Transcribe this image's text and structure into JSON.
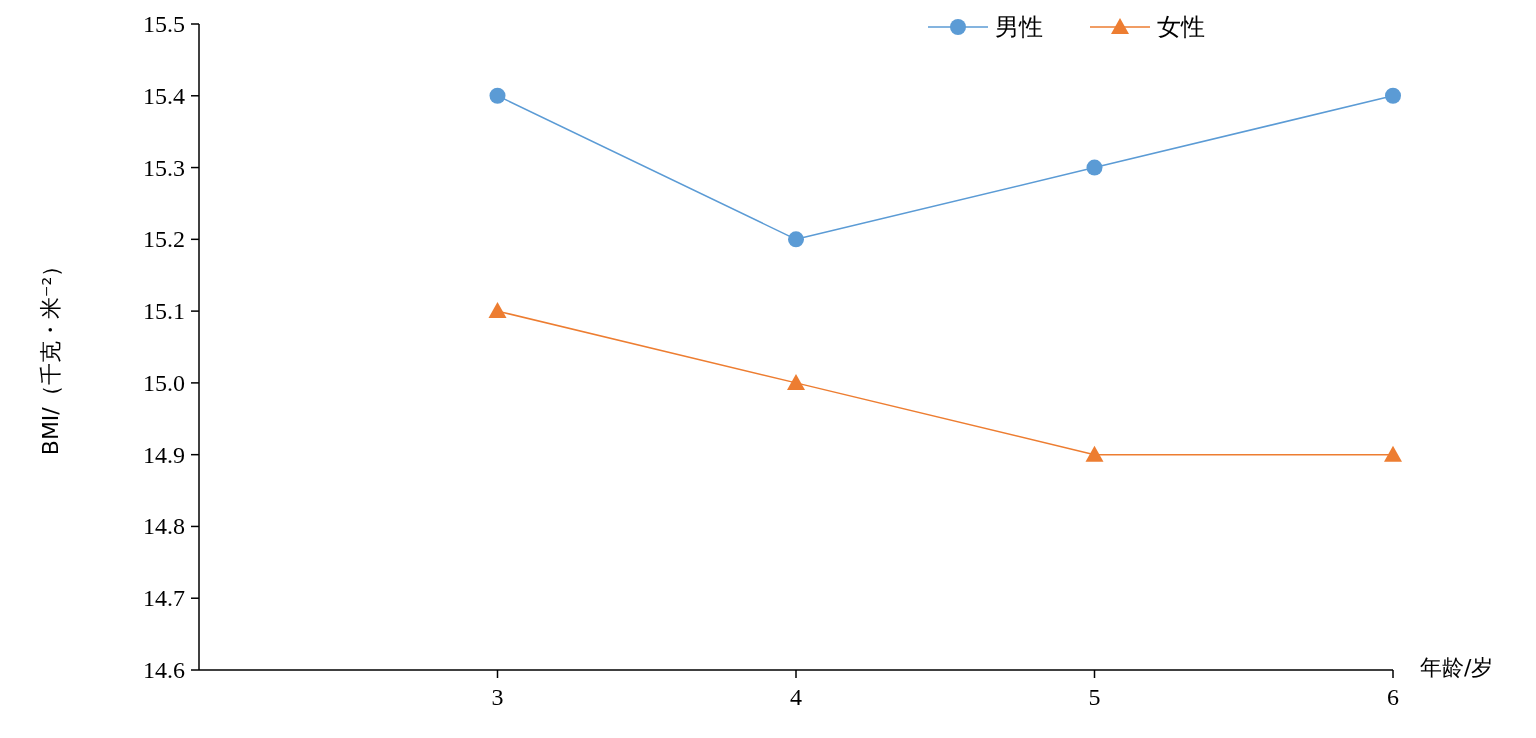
{
  "chart_data": {
    "type": "line",
    "xlabel": "年龄/岁",
    "ylabel": "BMI/（千克・米⁻²）",
    "x": [
      3,
      4,
      5,
      6
    ],
    "xlim": [
      2,
      6
    ],
    "xticks": [
      3,
      4,
      5,
      6
    ],
    "ylim": [
      14.6,
      15.5
    ],
    "yticks": [
      {
        "value": 14.6,
        "label": "14.6"
      },
      {
        "value": 14.7,
        "label": "14.7"
      },
      {
        "value": 14.8,
        "label": "14.8"
      },
      {
        "value": 14.9,
        "label": "14.9"
      },
      {
        "value": 15,
        "label": "15.0"
      },
      {
        "value": 15.1,
        "label": "15.1"
      },
      {
        "value": 15.2,
        "label": "15.2"
      },
      {
        "value": 15.3,
        "label": "15.3"
      },
      {
        "value": 15.4,
        "label": "15.4"
      },
      {
        "value": 15.5,
        "label": "15.5"
      }
    ],
    "grid": false,
    "legend": "top right",
    "series": [
      {
        "name": "男性",
        "color": "#5b9bd5",
        "marker": "circle",
        "values": [
          15.4,
          15.2,
          15.3,
          15.4
        ]
      },
      {
        "name": "女性",
        "color": "#ed7d31",
        "marker": "triangle",
        "values": [
          15.1,
          15.0,
          14.9,
          14.9
        ]
      }
    ]
  }
}
